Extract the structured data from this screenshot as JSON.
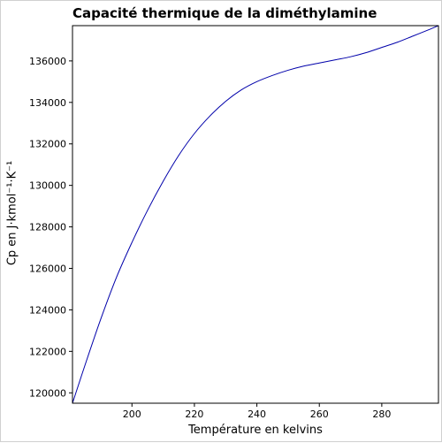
{
  "chart_data": {
    "type": "line",
    "title": "Capacité thermique de la diméthylamine",
    "xlabel": "Température en kelvins",
    "ylabel": "Cp en J·kmol⁻¹·K⁻¹",
    "xlim": [
      180.96,
      298.15
    ],
    "ylim": [
      119500,
      137700
    ],
    "x_ticks": [
      200,
      220,
      240,
      260,
      280
    ],
    "y_ticks": [
      120000,
      122000,
      124000,
      126000,
      128000,
      130000,
      132000,
      134000,
      136000
    ],
    "x_tick_labels": [
      "200",
      "220",
      "240",
      "260",
      "280"
    ],
    "y_tick_labels": [
      "120000",
      "122000",
      "124000",
      "126000",
      "128000",
      "130000",
      "132000",
      "134000",
      "136000"
    ],
    "grid": false,
    "line_color": "#0000aa",
    "series": [
      {
        "x": [
          180.96,
          185,
          190,
          195,
          200,
          205,
          210,
          215,
          220,
          225,
          230,
          235,
          240,
          245,
          250,
          255,
          260,
          265,
          270,
          275,
          280,
          285,
          290,
          295,
          298.15
        ],
        "y": [
          119500,
          121350,
          123550,
          125550,
          127250,
          128800,
          130200,
          131450,
          132500,
          133350,
          134050,
          134600,
          135000,
          135300,
          135550,
          135750,
          135900,
          136050,
          136200,
          136400,
          136650,
          136900,
          137200,
          137500,
          137700
        ]
      }
    ]
  }
}
